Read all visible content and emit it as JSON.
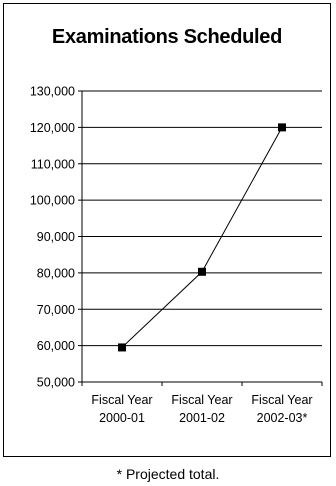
{
  "chart_data": {
    "type": "line",
    "title": "Examinations Scheduled",
    "categories": [
      [
        "Fiscal Year",
        "2000-01"
      ],
      [
        "Fiscal Year",
        "2001-02"
      ],
      [
        "Fiscal Year",
        "2002-03*"
      ]
    ],
    "series": [
      {
        "values": [
          59500,
          80300,
          120000
        ],
        "color": "#000000",
        "marker": "square"
      }
    ],
    "ylim": [
      50000,
      130000
    ],
    "yticks": [
      "50,000",
      "60,000",
      "70,000",
      "80,000",
      "90,000",
      "100,000",
      "110,000",
      "120,000",
      "130,000"
    ],
    "grid": true,
    "legend": "none"
  },
  "footnote": "* Projected total."
}
